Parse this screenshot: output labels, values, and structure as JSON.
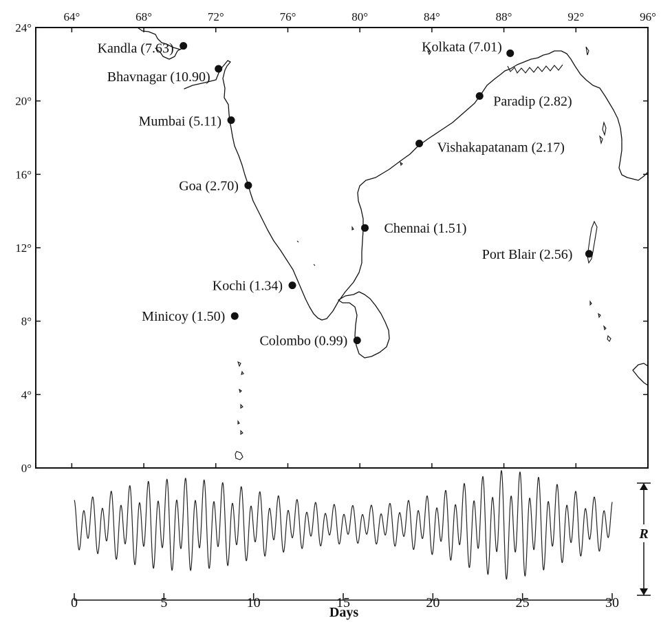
{
  "map": {
    "lon_ticks": [
      64,
      68,
      72,
      76,
      80,
      84,
      88,
      92,
      96
    ],
    "lat_ticks": [
      0,
      4,
      8,
      12,
      16,
      20,
      24
    ],
    "degree_symbol": "°",
    "ports": [
      {
        "name": "Kandla",
        "range": "7.63",
        "lon": 70.2,
        "lat": 23.0
      },
      {
        "name": "Bhavnagar",
        "range": "10.90",
        "lon": 72.15,
        "lat": 21.75
      },
      {
        "name": "Mumbai",
        "range": "5.11",
        "lon": 72.85,
        "lat": 18.95
      },
      {
        "name": "Goa",
        "range": "2.70",
        "lon": 73.8,
        "lat": 15.4
      },
      {
        "name": "Kochi",
        "range": "1.34",
        "lon": 76.25,
        "lat": 9.95
      },
      {
        "name": "Minicoy",
        "range": "1.50",
        "lon": 73.05,
        "lat": 8.28
      },
      {
        "name": "Colombo",
        "range": "0.99",
        "lon": 79.85,
        "lat": 6.95
      },
      {
        "name": "Chennai",
        "range": "1.51",
        "lon": 80.28,
        "lat": 13.08
      },
      {
        "name": "Port Blair",
        "range": "2.56",
        "lon": 92.73,
        "lat": 11.67
      },
      {
        "name": "Vishakapatanam",
        "range": "2.17",
        "lon": 83.3,
        "lat": 17.68
      },
      {
        "name": "Paradip",
        "range": "2.82",
        "lon": 86.65,
        "lat": 20.27
      },
      {
        "name": "Kolkata",
        "range": "7.01",
        "lon": 88.35,
        "lat": 22.6
      }
    ]
  },
  "tide_chart": {
    "x_ticks": [
      0,
      5,
      10,
      15,
      20,
      25,
      30
    ],
    "xlabel": "Days",
    "range_label": "R"
  },
  "chart_data": {
    "type": "line",
    "xlabel": "Days",
    "ylabel": "R",
    "xlim": [
      0,
      30
    ],
    "series_description_free": true,
    "x": [
      0,
      1,
      2,
      3,
      4,
      5,
      6,
      7,
      8,
      9,
      10,
      11,
      12,
      13,
      14,
      15,
      16,
      17,
      18,
      19,
      20,
      21,
      22,
      23,
      24,
      25,
      26,
      27,
      28,
      29,
      30
    ],
    "envelope": [
      0.45,
      0.5,
      0.6,
      0.7,
      0.78,
      0.82,
      0.85,
      0.82,
      0.78,
      0.72,
      0.62,
      0.55,
      0.48,
      0.42,
      0.38,
      0.35,
      0.34,
      0.36,
      0.4,
      0.46,
      0.55,
      0.65,
      0.78,
      0.9,
      1.0,
      0.95,
      0.85,
      0.72,
      0.6,
      0.5,
      0.45
    ]
  }
}
